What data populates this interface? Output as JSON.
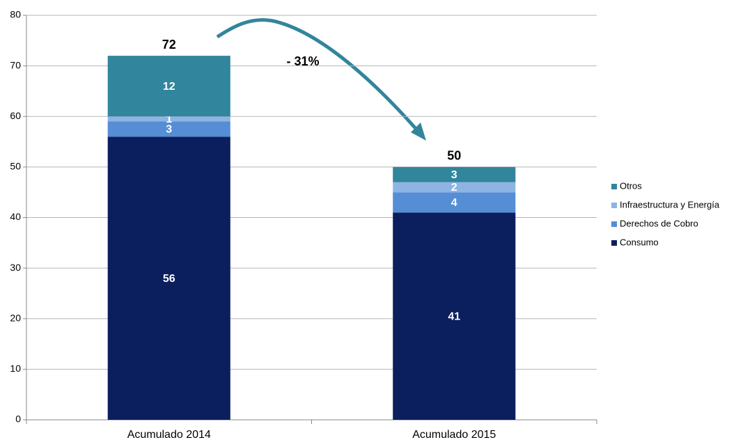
{
  "chart_data": {
    "type": "stacked_bar",
    "categories": [
      "Acumulado 2014",
      "Acumulado 2015"
    ],
    "series": [
      {
        "name": "Consumo",
        "color": "#0b1f5e",
        "values": [
          56,
          41
        ]
      },
      {
        "name": "Derechos de Cobro",
        "color": "#558ed5",
        "values": [
          3,
          4
        ]
      },
      {
        "name": "Infraestructura y Energía",
        "color": "#8eb4e3",
        "values": [
          1,
          2
        ]
      },
      {
        "name": "Otros",
        "color": "#31859c",
        "values": [
          12,
          3
        ]
      }
    ],
    "totals": [
      72,
      50
    ],
    "annotation": "- 31%",
    "ylim": [
      0,
      80
    ],
    "yticks": [
      0,
      10,
      20,
      30,
      40,
      50,
      60,
      70,
      80
    ],
    "grid": true,
    "legend": "right"
  }
}
